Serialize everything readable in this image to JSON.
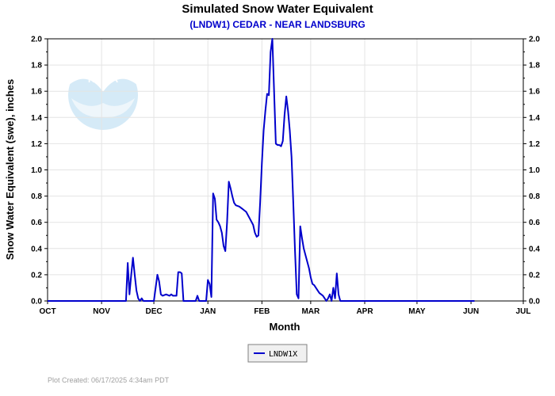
{
  "chart_data": {
    "type": "line",
    "title": "Simulated Snow Water Equivalent",
    "subtitle": "(LNDW1) CEDAR - NEAR LANDSBURG",
    "xlabel": "Month",
    "ylabel": "Snow Water Equivalent (swe),  inches",
    "ylim": [
      0,
      2.0
    ],
    "y_ticks": [
      "0.0",
      "0.2",
      "0.4",
      "0.6",
      "0.8",
      "1.0",
      "1.2",
      "1.4",
      "1.6",
      "1.8",
      "2.0"
    ],
    "x_ticks": [
      "OCT",
      "NOV",
      "DEC",
      "JAN",
      "FEB",
      "MAR",
      "APR",
      "MAY",
      "JUN",
      "JUL"
    ],
    "grid": true,
    "legend_position": "bottom-center",
    "series": [
      {
        "name": "LNDW1X",
        "color": "#0000cc",
        "points": [
          [
            0,
            0
          ],
          [
            45,
            0
          ],
          [
            46,
            0.29
          ],
          [
            47,
            0.05
          ],
          [
            48,
            0.2
          ],
          [
            49,
            0.33
          ],
          [
            50,
            0.2
          ],
          [
            51,
            0.08
          ],
          [
            52,
            0.02
          ],
          [
            53,
            0
          ],
          [
            54,
            0.02
          ],
          [
            55,
            0
          ],
          [
            61,
            0
          ],
          [
            63,
            0.2
          ],
          [
            64,
            0.15
          ],
          [
            65,
            0.05
          ],
          [
            66,
            0.04
          ],
          [
            68,
            0.05
          ],
          [
            70,
            0.04
          ],
          [
            71,
            0.05
          ],
          [
            72,
            0.04
          ],
          [
            74,
            0.04
          ],
          [
            75,
            0.22
          ],
          [
            76,
            0.22
          ],
          [
            77,
            0.21
          ],
          [
            78,
            0
          ],
          [
            85,
            0
          ],
          [
            86,
            0.04
          ],
          [
            87,
            0
          ],
          [
            91,
            0
          ],
          [
            92,
            0.16
          ],
          [
            93,
            0.13
          ],
          [
            94,
            0.03
          ],
          [
            95,
            0.82
          ],
          [
            96,
            0.78
          ],
          [
            97,
            0.62
          ],
          [
            98,
            0.6
          ],
          [
            99,
            0.57
          ],
          [
            100,
            0.52
          ],
          [
            101,
            0.42
          ],
          [
            102,
            0.38
          ],
          [
            103,
            0.6
          ],
          [
            104,
            0.91
          ],
          [
            105,
            0.86
          ],
          [
            106,
            0.8
          ],
          [
            107,
            0.75
          ],
          [
            108,
            0.73
          ],
          [
            110,
            0.72
          ],
          [
            112,
            0.7
          ],
          [
            114,
            0.68
          ],
          [
            116,
            0.63
          ],
          [
            118,
            0.58
          ],
          [
            119,
            0.52
          ],
          [
            120,
            0.49
          ],
          [
            121,
            0.5
          ],
          [
            122,
            0.75
          ],
          [
            123,
            1.05
          ],
          [
            124,
            1.3
          ],
          [
            125,
            1.45
          ],
          [
            126,
            1.58
          ],
          [
            127,
            1.57
          ],
          [
            128,
            1.9
          ],
          [
            129,
            2.0
          ],
          [
            130,
            1.6
          ],
          [
            131,
            1.2
          ],
          [
            132,
            1.19
          ],
          [
            133,
            1.19
          ],
          [
            134,
            1.18
          ],
          [
            135,
            1.22
          ],
          [
            136,
            1.42
          ],
          [
            137,
            1.56
          ],
          [
            138,
            1.45
          ],
          [
            139,
            1.3
          ],
          [
            140,
            1.1
          ],
          [
            141,
            0.75
          ],
          [
            142,
            0.38
          ],
          [
            143,
            0.05
          ],
          [
            144,
            0.02
          ],
          [
            145,
            0.57
          ],
          [
            146,
            0.48
          ],
          [
            147,
            0.4
          ],
          [
            148,
            0.35
          ],
          [
            149,
            0.3
          ],
          [
            150,
            0.25
          ],
          [
            151,
            0.18
          ],
          [
            152,
            0.13
          ],
          [
            153,
            0.12
          ],
          [
            154,
            0.1
          ],
          [
            155,
            0.08
          ],
          [
            156,
            0.06
          ],
          [
            157,
            0.05
          ],
          [
            158,
            0.04
          ],
          [
            159,
            0.02
          ],
          [
            160,
            0
          ],
          [
            161,
            0.02
          ],
          [
            162,
            0.05
          ],
          [
            163,
            0
          ],
          [
            164,
            0.1
          ],
          [
            165,
            0.02
          ],
          [
            166,
            0.21
          ],
          [
            167,
            0.05
          ],
          [
            168,
            0
          ],
          [
            245,
            0
          ]
        ]
      }
    ]
  },
  "logo": {
    "text": "NOAA"
  },
  "footer": {
    "created": "Plot Created: 06/17/2025 4:34am PDT"
  }
}
